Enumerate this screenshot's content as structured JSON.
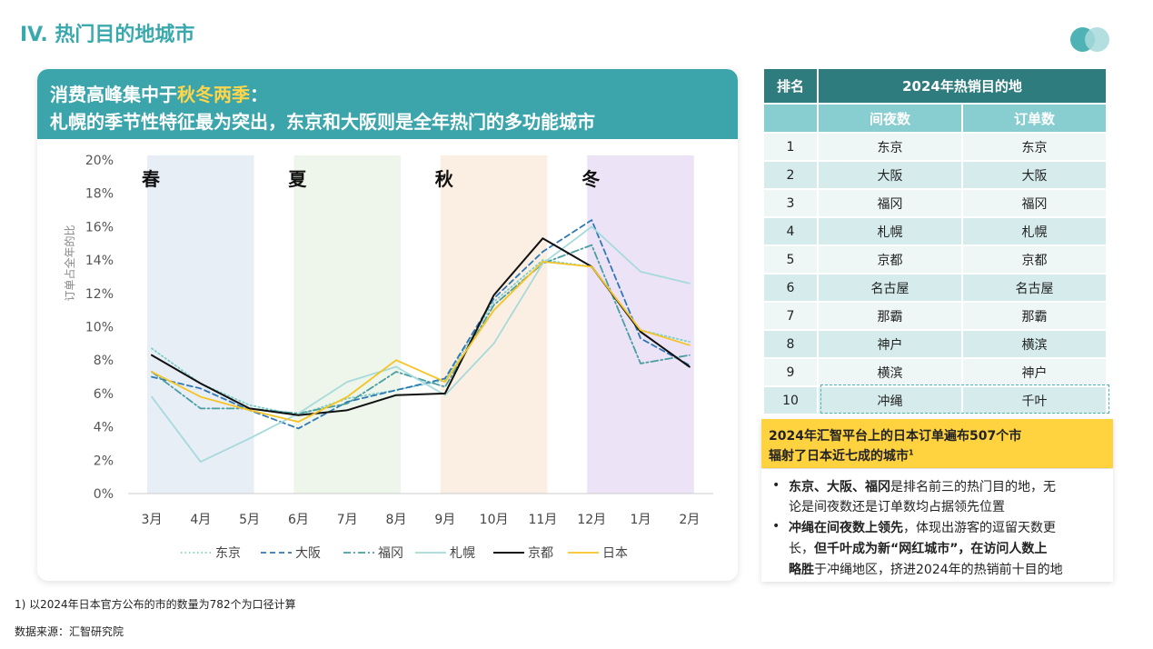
{
  "page_title": "IV. 热门目的地城市",
  "headline": {
    "line1_pre": "消费高峰集中于",
    "line1_highlight": "秋冬两季",
    "line1_post": "：",
    "line2": "札幌的季节性特征最为突出，东京和大阪则是全年热门的多功能城市"
  },
  "chart_data": {
    "type": "line",
    "ylabel": "订单占全年的比",
    "y_tick_labels": [
      "0%",
      "2%",
      "4%",
      "6%",
      "8%",
      "10%",
      "12%",
      "14%",
      "16%",
      "18%",
      "20%"
    ],
    "ylim": [
      0,
      20
    ],
    "categories": [
      "3月",
      "4月",
      "5月",
      "6月",
      "7月",
      "8月",
      "9月",
      "10月",
      "11月",
      "12月",
      "1月",
      "2月"
    ],
    "seasons": [
      {
        "label": "春",
        "from": 0,
        "to": 2,
        "color": "#e8eef6"
      },
      {
        "label": "夏",
        "from": 3,
        "to": 5,
        "color": "#eef5ea"
      },
      {
        "label": "秋",
        "from": 6,
        "to": 8,
        "color": "#fbeee2"
      },
      {
        "label": "冬",
        "from": 9,
        "to": 11,
        "color": "#ece4f6"
      }
    ],
    "series": [
      {
        "name": "东京",
        "color": "#7ecfc9",
        "dash": "1.5,3",
        "width": 1.8,
        "values": [
          8.7,
          6.6,
          5.3,
          4.7,
          5.7,
          6.2,
          6.8,
          11.5,
          14.0,
          13.6,
          9.8,
          9.1
        ]
      },
      {
        "name": "大阪",
        "color": "#2e78b5",
        "dash": "6,4",
        "width": 1.8,
        "values": [
          7.0,
          6.3,
          5.0,
          3.9,
          5.5,
          6.2,
          6.9,
          11.7,
          14.5,
          16.4,
          9.3,
          7.7
        ]
      },
      {
        "name": "福冈",
        "color": "#4a9ea2",
        "dash": "8,3,2,3",
        "width": 1.8,
        "values": [
          7.3,
          5.1,
          5.1,
          4.8,
          5.4,
          7.3,
          6.4,
          11.3,
          13.8,
          14.9,
          7.8,
          8.3
        ]
      },
      {
        "name": "札幌",
        "color": "#a6dadc",
        "dash": "",
        "width": 1.8,
        "values": [
          5.8,
          1.9,
          3.3,
          4.8,
          6.7,
          7.6,
          5.9,
          9.0,
          13.8,
          16.0,
          13.3,
          12.6
        ]
      },
      {
        "name": "京都",
        "color": "#111111",
        "dash": "",
        "width": 2.0,
        "values": [
          8.3,
          6.6,
          5.1,
          4.7,
          5.0,
          5.9,
          6.0,
          11.9,
          15.3,
          13.6,
          9.7,
          7.6
        ]
      },
      {
        "name": "日本",
        "color": "#f6c324",
        "dash": "",
        "width": 1.8,
        "values": [
          7.3,
          5.8,
          5.0,
          4.3,
          5.8,
          8.0,
          6.7,
          11.0,
          13.9,
          13.6,
          9.8,
          8.9
        ]
      }
    ],
    "legend_position": "bottom",
    "grid": false
  },
  "table": {
    "header_rank": "排名",
    "header_group": "2024年热销目的地",
    "col1": "间夜数",
    "col2": "订单数",
    "rows": [
      {
        "rank": "1",
        "nights": "东京",
        "orders": "东京"
      },
      {
        "rank": "2",
        "nights": "大阪",
        "orders": "大阪"
      },
      {
        "rank": "3",
        "nights": "福冈",
        "orders": "福冈"
      },
      {
        "rank": "4",
        "nights": "札幌",
        "orders": "札幌"
      },
      {
        "rank": "5",
        "nights": "京都",
        "orders": "京都"
      },
      {
        "rank": "6",
        "nights": "名古屋",
        "orders": "名古屋"
      },
      {
        "rank": "7",
        "nights": "那霸",
        "orders": "那霸"
      },
      {
        "rank": "8",
        "nights": "神户",
        "orders": "横滨"
      },
      {
        "rank": "9",
        "nights": "横滨",
        "orders": "神户"
      },
      {
        "rank": "10",
        "nights": "冲绳",
        "orders": "千叶"
      }
    ]
  },
  "callout": {
    "line1": "2024年汇智平台上的日本订单遍布507个市",
    "line2": "辐射了日本近七成的城市",
    "sup": "1"
  },
  "bullets": {
    "b1_bold": "东京、大阪、福冈",
    "b1_rest": "是排名前三的热门目的地，无",
    "b1_line2": "论是间夜数还是订单数均占据领先位置",
    "b2_bold1": "冲绳在间夜数上领先",
    "b2_rest1": "，体现出游客的逗留天数更",
    "b2_line2_pre": "长，",
    "b2_line2_bold": "但千叶成为新“网红城市”，在访问人数上",
    "b2_line3_bold": "略胜",
    "b2_line3_rest": "于冲绳地区，挤进2024年的热销前十目的地"
  },
  "footnote": "1) 以2024年日本官方公布的市的数量为782个为口径计算",
  "source": "数据来源：汇智研究院"
}
